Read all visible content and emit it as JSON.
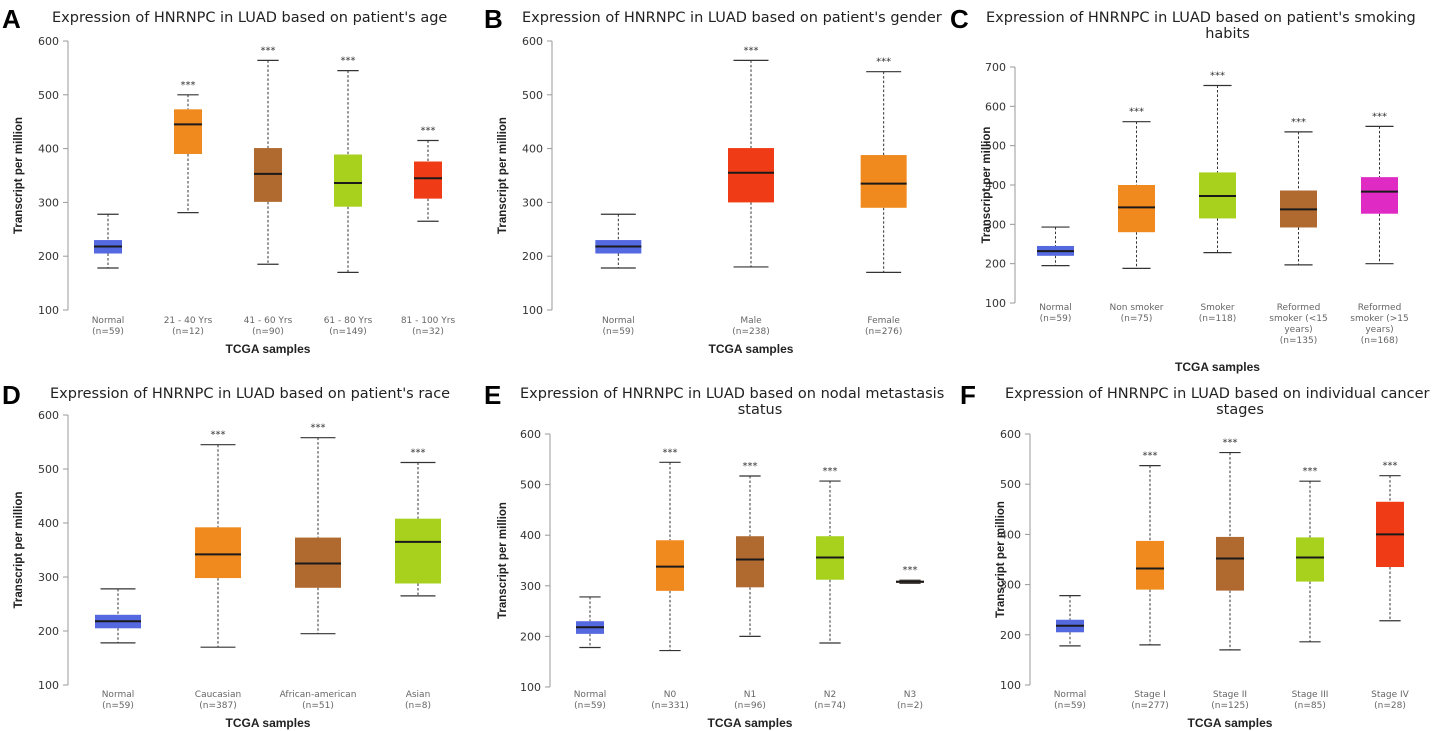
{
  "chart_data": [
    {
      "type": "boxplot",
      "panel": "A",
      "title": [
        "Expression of HNRNPC in LUAD based on patient's age"
      ],
      "xlabel": "TCGA samples",
      "ylabel": "Transcript per million",
      "ylim": [
        100,
        600
      ],
      "yticks": [
        100,
        200,
        300,
        400,
        500,
        600
      ],
      "groups": [
        {
          "label": [
            "Normal"
          ],
          "n": "(n=59)",
          "color": "#5468e0",
          "min": 178,
          "q1": 205,
          "median": 218,
          "q3": 230,
          "max": 278,
          "sig": ""
        },
        {
          "label": [
            "21 - 40 Yrs"
          ],
          "n": "(n=12)",
          "color": "#f0891e",
          "min": 281,
          "q1": 390,
          "median": 445,
          "q3": 473,
          "max": 500,
          "sig": "***"
        },
        {
          "label": [
            "41 - 60 Yrs"
          ],
          "n": "(n=90)",
          "color": "#b06a30",
          "min": 185,
          "q1": 301,
          "median": 353,
          "q3": 401,
          "max": 564,
          "sig": "***"
        },
        {
          "label": [
            "61 - 80 Yrs"
          ],
          "n": "(n=149)",
          "color": "#a7d11d",
          "min": 170,
          "q1": 292,
          "median": 336,
          "q3": 389,
          "max": 545,
          "sig": "***"
        },
        {
          "label": [
            "81 - 100 Yrs"
          ],
          "n": "(n=32)",
          "color": "#f03c16",
          "min": 265,
          "q1": 307,
          "median": 345,
          "q3": 376,
          "max": 415,
          "sig": "***"
        }
      ]
    },
    {
      "type": "boxplot",
      "panel": "B",
      "title": [
        "Expression of HNRNPC in LUAD based on patient's gender"
      ],
      "xlabel": "TCGA samples",
      "ylabel": "Transcript per million",
      "ylim": [
        100,
        600
      ],
      "yticks": [
        100,
        200,
        300,
        400,
        500,
        600
      ],
      "groups": [
        {
          "label": [
            "Normal"
          ],
          "n": "(n=59)",
          "color": "#5468e0",
          "min": 178,
          "q1": 205,
          "median": 218,
          "q3": 230,
          "max": 278,
          "sig": ""
        },
        {
          "label": [
            "Male"
          ],
          "n": "(n=238)",
          "color": "#f03c16",
          "min": 180,
          "q1": 300,
          "median": 355,
          "q3": 401,
          "max": 564,
          "sig": "***"
        },
        {
          "label": [
            "Female"
          ],
          "n": "(n=276)",
          "color": "#f0891e",
          "min": 170,
          "q1": 290,
          "median": 335,
          "q3": 388,
          "max": 543,
          "sig": "***"
        }
      ]
    },
    {
      "type": "boxplot",
      "panel": "C",
      "title": [
        "Expression of HNRNPC in LUAD based on patient's smoking",
        "habits"
      ],
      "xlabel": "TCGA samples",
      "ylabel": "Transcript per million",
      "ylim": [
        100,
        700
      ],
      "yticks": [
        100,
        200,
        300,
        400,
        500,
        600,
        700
      ],
      "groups": [
        {
          "label": [
            "Normal"
          ],
          "n": "(n=59)",
          "color": "#5468e0",
          "min": 195,
          "q1": 220,
          "median": 232,
          "q3": 245,
          "max": 293,
          "sig": ""
        },
        {
          "label": [
            "Non smoker"
          ],
          "n": "(n=75)",
          "color": "#f0891e",
          "min": 188,
          "q1": 280,
          "median": 343,
          "q3": 400,
          "max": 561,
          "sig": "***"
        },
        {
          "label": [
            "Smoker"
          ],
          "n": "(n=118)",
          "color": "#a7d11d",
          "min": 228,
          "q1": 315,
          "median": 372,
          "q3": 432,
          "max": 653,
          "sig": "***"
        },
        {
          "label": [
            "Reformed",
            "smoker (<15",
            "years)"
          ],
          "n": "(n=135)",
          "color": "#b06a30",
          "min": 197,
          "q1": 292,
          "median": 338,
          "q3": 386,
          "max": 535,
          "sig": "***"
        },
        {
          "label": [
            "Reformed",
            "smoker (>15",
            "years)"
          ],
          "n": "(n=168)",
          "color": "#e02ac4",
          "min": 200,
          "q1": 327,
          "median": 383,
          "q3": 420,
          "max": 549,
          "sig": "***"
        }
      ]
    },
    {
      "type": "boxplot",
      "panel": "D",
      "title": [
        "Expression of HNRNPC in LUAD based on patient's race"
      ],
      "xlabel": "TCGA samples",
      "ylabel": "Transcript per million",
      "ylim": [
        100,
        600
      ],
      "yticks": [
        100,
        200,
        300,
        400,
        500,
        600
      ],
      "groups": [
        {
          "label": [
            "Normal"
          ],
          "n": "(n=59)",
          "color": "#5468e0",
          "min": 178,
          "q1": 205,
          "median": 218,
          "q3": 230,
          "max": 278,
          "sig": ""
        },
        {
          "label": [
            "Caucasian"
          ],
          "n": "(n=387)",
          "color": "#f0891e",
          "min": 170,
          "q1": 298,
          "median": 342,
          "q3": 392,
          "max": 545,
          "sig": "***"
        },
        {
          "label": [
            "African-american"
          ],
          "n": "(n=51)",
          "color": "#b06a30",
          "min": 195,
          "q1": 280,
          "median": 325,
          "q3": 373,
          "max": 558,
          "sig": "***"
        },
        {
          "label": [
            "Asian"
          ],
          "n": "(n=8)",
          "color": "#a7d11d",
          "min": 265,
          "q1": 288,
          "median": 365,
          "q3": 408,
          "max": 512,
          "sig": "***"
        }
      ]
    },
    {
      "type": "boxplot",
      "panel": "E",
      "title": [
        "Expression of HNRNPC in LUAD based on nodal metastasis",
        "status"
      ],
      "xlabel": "TCGA samples",
      "ylabel": "Transcript per million",
      "ylim": [
        100,
        600
      ],
      "yticks": [
        100,
        200,
        300,
        400,
        500,
        600
      ],
      "groups": [
        {
          "label": [
            "Normal"
          ],
          "n": "(n=59)",
          "color": "#5468e0",
          "min": 178,
          "q1": 205,
          "median": 218,
          "q3": 230,
          "max": 278,
          "sig": ""
        },
        {
          "label": [
            "N0"
          ],
          "n": "(n=331)",
          "color": "#f0891e",
          "min": 172,
          "q1": 290,
          "median": 338,
          "q3": 390,
          "max": 544,
          "sig": "***"
        },
        {
          "label": [
            "N1"
          ],
          "n": "(n=96)",
          "color": "#b06a30",
          "min": 200,
          "q1": 297,
          "median": 352,
          "q3": 398,
          "max": 517,
          "sig": "***"
        },
        {
          "label": [
            "N2"
          ],
          "n": "(n=74)",
          "color": "#a7d11d",
          "min": 187,
          "q1": 312,
          "median": 356,
          "q3": 398,
          "max": 507,
          "sig": "***"
        },
        {
          "label": [
            "N3"
          ],
          "n": "(n=2)",
          "color": "#7a3510",
          "min": 305,
          "q1": 306,
          "median": 308,
          "q3": 310,
          "max": 311,
          "sig": "***"
        }
      ]
    },
    {
      "type": "boxplot",
      "panel": "F",
      "title": [
        "Expression of HNRNPC in LUAD based on individual cancer",
        "stages"
      ],
      "xlabel": "TCGA samples",
      "ylabel": "Transcript per million",
      "ylim": [
        100,
        600
      ],
      "yticks": [
        100,
        200,
        300,
        400,
        500,
        600
      ],
      "groups": [
        {
          "label": [
            "Normal"
          ],
          "n": "(n=59)",
          "color": "#5468e0",
          "min": 178,
          "q1": 205,
          "median": 218,
          "q3": 230,
          "max": 278,
          "sig": ""
        },
        {
          "label": [
            "Stage I"
          ],
          "n": "(n=277)",
          "color": "#f0891e",
          "min": 180,
          "q1": 290,
          "median": 332,
          "q3": 387,
          "max": 537,
          "sig": "***"
        },
        {
          "label": [
            "Stage II"
          ],
          "n": "(n=125)",
          "color": "#b06a30",
          "min": 170,
          "q1": 288,
          "median": 352,
          "q3": 395,
          "max": 563,
          "sig": "***"
        },
        {
          "label": [
            "Stage III"
          ],
          "n": "(n=85)",
          "color": "#a7d11d",
          "min": 186,
          "q1": 306,
          "median": 354,
          "q3": 394,
          "max": 506,
          "sig": "***"
        },
        {
          "label": [
            "Stage IV"
          ],
          "n": "(n=28)",
          "color": "#f03c16",
          "min": 228,
          "q1": 335,
          "median": 400,
          "q3": 465,
          "max": 517,
          "sig": "***"
        }
      ]
    }
  ]
}
